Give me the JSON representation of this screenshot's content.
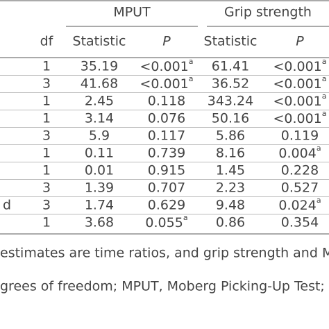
{
  "header": {
    "groups": [
      "MPUT",
      "Grip strength"
    ],
    "columns": [
      "df",
      "Statistic",
      "P",
      "Statistic",
      "P"
    ]
  },
  "table": {
    "rows": [
      {
        "cells": [
          "1",
          "35.19",
          {
            "text": "<0.001",
            "sup": "a"
          },
          "61.41",
          {
            "text": "<0.001",
            "sup": "a"
          }
        ]
      },
      {
        "cells": [
          "3",
          "41.68",
          {
            "text": "<0.001",
            "sup": "a"
          },
          "36.52",
          {
            "text": "<0.001",
            "sup": "a"
          }
        ]
      },
      {
        "cells": [
          "1",
          "2.45",
          "0.118",
          "343.24",
          {
            "text": "<0.001",
            "sup": "a"
          }
        ]
      },
      {
        "cells": [
          "1",
          "3.14",
          "0.076",
          "50.16",
          {
            "text": "<0.001",
            "sup": "a"
          }
        ]
      },
      {
        "cells": [
          "3",
          "5.9",
          "0.117",
          "5.86",
          "0.119"
        ]
      },
      {
        "cells": [
          "1",
          "0.11",
          "0.739",
          "8.16",
          {
            "text": "0.004",
            "sup": "a"
          }
        ]
      },
      {
        "cells": [
          "1",
          "0.01",
          "0.915",
          "1.45",
          "0.228"
        ]
      },
      {
        "cells": [
          "3",
          "1.39",
          "0.707",
          "2.23",
          "0.527"
        ]
      },
      {
        "label": "d",
        "cells": [
          "3",
          "1.74",
          "0.629",
          "9.48",
          {
            "text": "0.024",
            "sup": "a"
          }
        ]
      },
      {
        "cells": [
          "1",
          "3.68",
          {
            "text": "0.055",
            "sup": "a"
          },
          "0.86",
          "0.354"
        ]
      }
    ]
  },
  "notes": [
    "estimates are time ratios, and grip strength and MH",
    "grees of freedom; MPUT, Moberg Picking-Up Test;"
  ]
}
